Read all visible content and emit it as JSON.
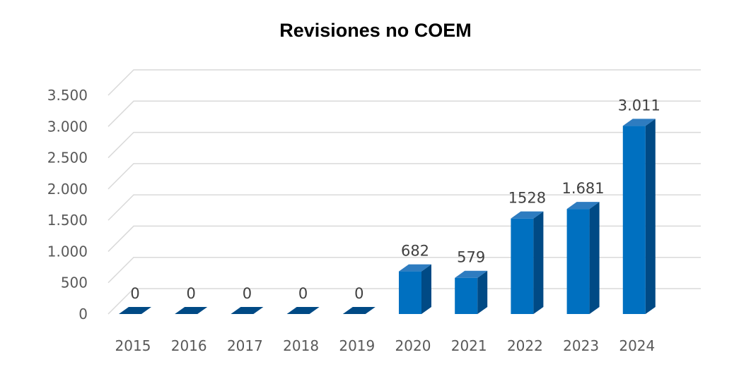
{
  "chart_data": {
    "type": "bar",
    "title": "Revisiones no COEM",
    "xlabel": "",
    "ylabel": "",
    "categories": [
      "2015",
      "2016",
      "2017",
      "2018",
      "2019",
      "2020",
      "2021",
      "2022",
      "2023",
      "2024"
    ],
    "values": [
      0,
      0,
      0,
      0,
      0,
      682,
      579,
      1528,
      1681,
      3011
    ],
    "data_labels": [
      "0",
      "0",
      "0",
      "0",
      "0",
      "682",
      "579",
      "1528",
      "1.681",
      "3.011"
    ],
    "ylim": [
      0,
      3500
    ],
    "y_ticks": [
      0,
      500,
      1000,
      1500,
      2000,
      2500,
      3000,
      3500
    ],
    "y_tick_labels": [
      "0",
      "500",
      "1.000",
      "1.500",
      "2.000",
      "2.500",
      "3.000",
      "3.500"
    ],
    "grid": true,
    "legend": "none",
    "style": "3d-column",
    "colors": {
      "bar_front": "#0070C0",
      "bar_side": "#004A85",
      "bar_top": "#2E7CC0",
      "gridline": "#D9D9D9"
    }
  }
}
